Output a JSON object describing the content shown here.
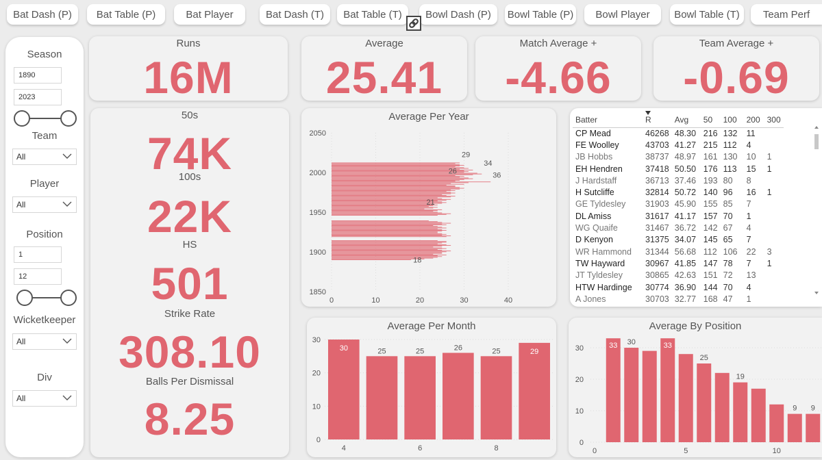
{
  "nav": {
    "tabs": [
      {
        "label": "Bat Dash (P)"
      },
      {
        "label": "Bat Table (P)"
      },
      {
        "label": "Bat Player"
      },
      {
        "label": "Bat Dash (T)"
      },
      {
        "label": "Bat Table (T)"
      },
      {
        "label": "Bowl Dash (P)"
      },
      {
        "label": "Bowl Table (P)"
      },
      {
        "label": "Bowl Player"
      },
      {
        "label": "Bowl Table (T)"
      },
      {
        "label": "Team Perf"
      }
    ],
    "link_icon": "link-icon"
  },
  "filters": {
    "season": {
      "label": "Season",
      "from": "1890",
      "to": "2023"
    },
    "team": {
      "label": "Team",
      "value": "All"
    },
    "player": {
      "label": "Player",
      "value": "All"
    },
    "position": {
      "label": "Position",
      "from": "1",
      "to": "12"
    },
    "wicketkeeper": {
      "label": "Wicketkeeper",
      "value": "All"
    },
    "div": {
      "label": "Div",
      "value": "All"
    }
  },
  "kpis": {
    "runs": {
      "label": "Runs",
      "value": "16M"
    },
    "average": {
      "label": "Average",
      "value": "25.41"
    },
    "match_average": {
      "label": "Match Average +",
      "value": "-4.66"
    },
    "team_average": {
      "label": "Team Average +",
      "value": "-0.69"
    }
  },
  "stats": {
    "fifties": {
      "label": "50s",
      "value": "74K"
    },
    "hundreds": {
      "label": "100s",
      "value": "22K"
    },
    "hs": {
      "label": "HS",
      "value": "501"
    },
    "strike_rate": {
      "label": "Strike Rate",
      "value": "308.10"
    },
    "balls_per_dismissal": {
      "label": "Balls Per Dismissal",
      "value": "8.25"
    }
  },
  "batter_table": {
    "columns": [
      "Batter",
      "R",
      "Avg",
      "50",
      "100",
      "200",
      "300"
    ],
    "rows": [
      [
        "CP Mead",
        "46268",
        "48.30",
        "216",
        "132",
        "11",
        ""
      ],
      [
        "FE Woolley",
        "43703",
        "41.27",
        "215",
        "112",
        "4",
        ""
      ],
      [
        "JB Hobbs",
        "38737",
        "48.97",
        "161",
        "130",
        "10",
        "1"
      ],
      [
        "EH Hendren",
        "37418",
        "50.50",
        "176",
        "113",
        "15",
        "1"
      ],
      [
        "J Hardstaff",
        "36713",
        "37.46",
        "193",
        "80",
        "8",
        ""
      ],
      [
        "H Sutcliffe",
        "32814",
        "50.72",
        "140",
        "96",
        "16",
        "1"
      ],
      [
        "GE Tyldesley",
        "31903",
        "45.90",
        "155",
        "85",
        "7",
        ""
      ],
      [
        "DL Amiss",
        "31617",
        "41.17",
        "157",
        "70",
        "1",
        ""
      ],
      [
        "WG Quaife",
        "31467",
        "36.72",
        "142",
        "67",
        "4",
        ""
      ],
      [
        "D Kenyon",
        "31375",
        "34.07",
        "145",
        "65",
        "7",
        ""
      ],
      [
        "WR Hammond",
        "31344",
        "56.68",
        "112",
        "106",
        "22",
        "3"
      ],
      [
        "TW Hayward",
        "30967",
        "41.85",
        "147",
        "78",
        "7",
        "1"
      ],
      [
        "JT Tyldesley",
        "30865",
        "42.63",
        "151",
        "72",
        "13",
        ""
      ],
      [
        "HTW Hardinge",
        "30774",
        "36.90",
        "144",
        "70",
        "4",
        ""
      ],
      [
        "A Jones",
        "30703",
        "32.77",
        "168",
        "47",
        "1",
        ""
      ]
    ]
  },
  "chart_data": [
    {
      "type": "bar",
      "orientation": "horizontal",
      "title": "Average Per Year",
      "xlim": [
        0,
        40
      ],
      "ylim": [
        1850,
        2050
      ],
      "xticks": [
        0,
        10,
        20,
        30,
        40
      ],
      "yticks": [
        1850,
        1900,
        1950,
        2000,
        2050
      ],
      "data_labels": [
        {
          "year": 2023,
          "value": 29
        },
        {
          "year": 2012,
          "value": 34
        },
        {
          "year": 2002,
          "value": 26
        },
        {
          "year": 1997,
          "value": 36
        },
        {
          "year": 1963,
          "value": 21
        },
        {
          "year": 1890,
          "value": 18
        }
      ],
      "series": [
        {
          "name": "",
          "years_from": 1890,
          "values": [
            18,
            21,
            23,
            24,
            25,
            24,
            26,
            23,
            25,
            25,
            26,
            27,
            25,
            24,
            26,
            25,
            23,
            25,
            27,
            26,
            24,
            25,
            26,
            26,
            24,
            26,
            27,
            25,
            26,
            25,
            24,
            24,
            25,
            26,
            25,
            24,
            26,
            25,
            24,
            23,
            26,
            25,
            27,
            25,
            24,
            22,
            24,
            26,
            27,
            25,
            24,
            23,
            24,
            25,
            21,
            23,
            24,
            22,
            23,
            24,
            23,
            25,
            26,
            25,
            24,
            26,
            27,
            25,
            24,
            27,
            28,
            26,
            25,
            27,
            28,
            27,
            26,
            28,
            27,
            29,
            30,
            29,
            28,
            28,
            26,
            30,
            27,
            31,
            36,
            28,
            29,
            30,
            32,
            31,
            29,
            30,
            28,
            32,
            34,
            33,
            30,
            31,
            30,
            32,
            29,
            31,
            30,
            28,
            29,
            30,
            29,
            28,
            29
          ]
        }
      ],
      "gaps": [
        [
          1915,
          1918
        ],
        [
          1940,
          1945
        ]
      ]
    },
    {
      "type": "bar",
      "title": "Average Per Month",
      "categories": [
        4,
        5,
        6,
        7,
        8,
        9
      ],
      "xticks": [
        4,
        6,
        8
      ],
      "values": [
        30,
        25,
        25,
        26,
        25,
        29
      ],
      "ylim": [
        0,
        30
      ],
      "yticks": [
        0,
        10,
        20,
        30
      ]
    },
    {
      "type": "bar",
      "title": "Average By Position",
      "categories": [
        1,
        2,
        3,
        4,
        5,
        6,
        7,
        8,
        9,
        10,
        11,
        12
      ],
      "xticks": [
        0,
        5,
        10
      ],
      "values": [
        33,
        30,
        29,
        33,
        28,
        25,
        22,
        19,
        17,
        12,
        9,
        9
      ],
      "data_labels": [
        33,
        30,
        null,
        33,
        null,
        25,
        null,
        19,
        null,
        null,
        9,
        9
      ],
      "ylim": [
        0,
        30
      ],
      "yticks": [
        0,
        10,
        20,
        30
      ]
    }
  ]
}
